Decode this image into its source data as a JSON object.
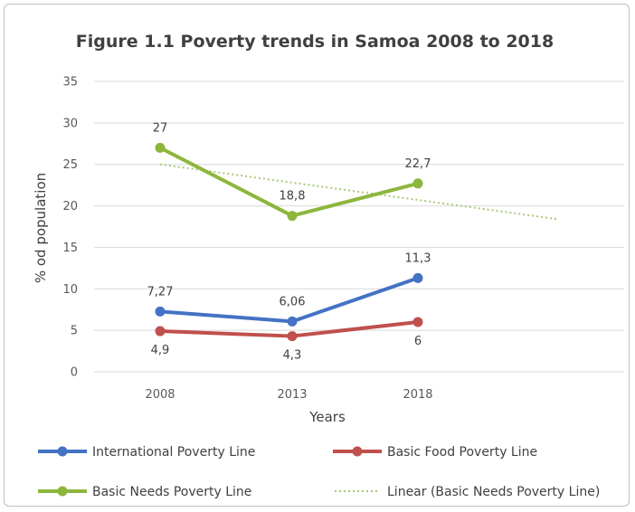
{
  "chart_data": {
    "type": "line",
    "title": "Figure 1.1 Poverty trends in Samoa 2008 to 2018",
    "xlabel": "Years",
    "ylabel": "% od population",
    "categories": [
      "2008",
      "2013",
      "2018"
    ],
    "ylim": [
      0,
      35
    ],
    "yticks": [
      0,
      5,
      10,
      15,
      20,
      25,
      30,
      35
    ],
    "grid": true,
    "legend_position": "bottom",
    "series": [
      {
        "name": "International Poverty Line",
        "values": [
          7.27,
          6.06,
          11.3
        ],
        "labels": [
          "7,27",
          "6,06",
          "11,3"
        ],
        "label_side": [
          "above",
          "above",
          "above"
        ],
        "color": "#4472C4"
      },
      {
        "name": "Basic Food Poverty Line",
        "values": [
          4.9,
          4.3,
          6
        ],
        "labels": [
          "4,9",
          "4,3",
          "6"
        ],
        "label_side": [
          "below",
          "below",
          "below"
        ],
        "color": "#C0504D"
      },
      {
        "name": "Basic Needs Poverty Line",
        "values": [
          27,
          18.8,
          22.7
        ],
        "labels": [
          "27",
          "18,8",
          "22,7"
        ],
        "label_side": [
          "above",
          "above",
          "above"
        ],
        "color": "#8DB63C"
      }
    ],
    "trendline": {
      "name": "Linear (Basic Needs Poverty Line)",
      "of_series": "Basic Needs Poverty Line",
      "x_start": "2008",
      "y_start": 25.0,
      "y_end": 18.4,
      "extends_to": "plot-edge",
      "style": "dotted",
      "color": "#A9C97A"
    }
  }
}
